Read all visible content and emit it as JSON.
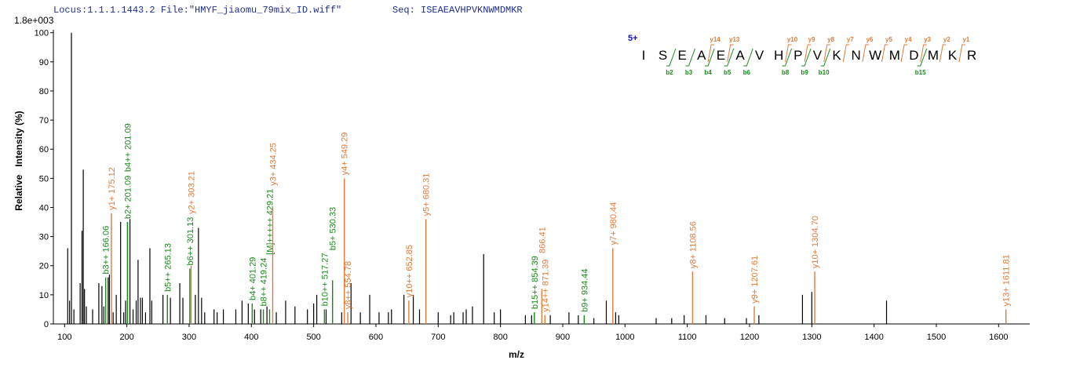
{
  "chart_data": {
    "type": "spectrum",
    "locus": "Locus:1.1.1.1443.2 File:\"HMYF_jiaomu_79mix_ID.wiff\"",
    "seq": "Seq: ISEAEAVHPVKNWMDMKR",
    "scale_label": "1.8e+003",
    "xlabel": "m/z",
    "ylabel": "Relative   Intensity (%)",
    "xlim": [
      82,
      1650
    ],
    "ylim": [
      0,
      101
    ],
    "xticks": [
      100,
      200,
      300,
      400,
      500,
      600,
      700,
      800,
      900,
      1000,
      1100,
      1200,
      1300,
      1400,
      1500,
      1600
    ],
    "yticks": [
      0,
      10,
      20,
      30,
      40,
      50,
      60,
      70,
      80,
      90,
      100
    ],
    "peak_color": "#000000",
    "peaks": {
      "x": [
        105,
        108,
        111,
        115,
        125,
        128,
        130,
        132,
        135,
        145,
        155,
        160,
        163,
        170,
        172,
        178,
        183,
        190,
        195,
        198,
        205,
        210,
        215,
        218,
        222,
        225,
        230,
        237,
        240,
        258,
        270,
        285,
        290,
        310,
        315,
        320,
        325,
        340,
        345,
        355,
        375,
        385,
        395,
        405,
        415,
        425,
        440,
        455,
        470,
        490,
        500,
        505,
        520,
        545,
        560,
        575,
        590,
        605,
        620,
        625,
        645,
        660,
        670,
        700,
        720,
        725,
        740,
        745,
        755,
        773,
        790,
        800,
        840,
        850,
        880,
        910,
        925,
        950,
        970,
        985,
        990,
        1050,
        1075,
        1095,
        1130,
        1160,
        1195,
        1215,
        1285,
        1300,
        1420
      ],
      "values": [
        26,
        8,
        100,
        5,
        14,
        32,
        53,
        12,
        6,
        5,
        14,
        13,
        6,
        16,
        17,
        4,
        10,
        35,
        4,
        8,
        36,
        5,
        8,
        22,
        9,
        9,
        4,
        26,
        8,
        10,
        9,
        14,
        9,
        10,
        33,
        9,
        4,
        5,
        4,
        5,
        5,
        8,
        7,
        5,
        5,
        6,
        4,
        8,
        6,
        5,
        7,
        10,
        5,
        4,
        14,
        4,
        10,
        4,
        4,
        5,
        10,
        10,
        5,
        4,
        3,
        4,
        4,
        5,
        6,
        24,
        4,
        5,
        3,
        3,
        3,
        4,
        3,
        2,
        8,
        4,
        3,
        2,
        2,
        3,
        3,
        2,
        2,
        3,
        10,
        11,
        8
      ]
    },
    "annotations": [
      {
        "x": 166.06,
        "value": 16,
        "label": "b3++ 166.06",
        "color": "#1a8a1a"
      },
      {
        "x": 175.12,
        "value": 38,
        "label": "y1+ 175.12",
        "color": "#e07b39"
      },
      {
        "x": 201.09,
        "value": 35,
        "label": "b2+ 201.09",
        "color": "#1a8a1a"
      },
      {
        "x": 201.09,
        "value": 35,
        "label": "b4++ 201.09",
        "color": "#1a8a1a"
      },
      {
        "x": 265.13,
        "value": 10,
        "label": "b5++ 265.13",
        "color": "#1a8a1a"
      },
      {
        "x": 301.13,
        "value": 19,
        "label": "b6++ 301.13",
        "color": "#1a8a1a"
      },
      {
        "x": 303.21,
        "value": 20,
        "label": "y2+ 303.21",
        "color": "#e07b39"
      },
      {
        "x": 401.29,
        "value": 7,
        "label": "b4+ 401.29",
        "color": "#1a8a1a"
      },
      {
        "x": 419.24,
        "value": 5,
        "label": "b8++ 419.24",
        "color": "#1a8a1a"
      },
      {
        "x": 429.21,
        "value": 5,
        "label": "[M]+++++ 429.21",
        "color": "#1a8a1a"
      },
      {
        "x": 434.25,
        "value": 40,
        "label": "y3+ 434.25",
        "color": "#e07b39"
      },
      {
        "x": 517.27,
        "value": 5,
        "label": "b10++ 517.27",
        "color": "#1a8a1a"
      },
      {
        "x": 530.33,
        "value": 15,
        "label": "b5+ 530.33",
        "color": "#1a8a1a"
      },
      {
        "x": 549.29,
        "value": 50,
        "label": "y4+ 549.29",
        "color": "#e07b39"
      },
      {
        "x": 554.78,
        "value": 4,
        "label": "y8++ 554.78",
        "color": "#e07b39"
      },
      {
        "x": 652.85,
        "value": 8,
        "label": "y10++ 652.85",
        "color": "#e07b39"
      },
      {
        "x": 680.31,
        "value": 36,
        "label": "y5+ 680.31",
        "color": "#e07b39"
      },
      {
        "x": 854.39,
        "value": 4,
        "label": "b15++ 854.39",
        "color": "#1a8a1a"
      },
      {
        "x": 866.41,
        "value": 12,
        "label": "866.41",
        "color": "#e07b39"
      },
      {
        "x": 871.39,
        "value": 3,
        "label": "y14++ 871.39",
        "color": "#e07b39"
      },
      {
        "x": 934.44,
        "value": 3,
        "label": "b9+ 934.44",
        "color": "#1a8a1a"
      },
      {
        "x": 980.44,
        "value": 26,
        "label": "y7+ 980.44",
        "color": "#e07b39"
      },
      {
        "x": 1108.56,
        "value": 18,
        "label": "y8+ 1108.56",
        "color": "#e07b39"
      },
      {
        "x": 1207.61,
        "value": 6,
        "label": "y9+ 1207.61",
        "color": "#e07b39"
      },
      {
        "x": 1304.7,
        "value": 18,
        "label": "y10+ 1304.70",
        "color": "#e07b39"
      },
      {
        "x": 1611.81,
        "value": 5,
        "label": "y13+ 1611.81",
        "color": "#e07b39"
      }
    ],
    "sequence_map": {
      "charge": "5+",
      "residues": [
        "I",
        "S",
        "E",
        "A",
        "E",
        "A",
        "V",
        "H",
        "P",
        "V",
        "K",
        "N",
        "W",
        "M",
        "D",
        "M",
        "K",
        "R"
      ],
      "y_labels": [
        null,
        null,
        null,
        "y14",
        "y13",
        null,
        null,
        "y10",
        "y9",
        "y8",
        "y7",
        "y6",
        "y5",
        "y4",
        "y3",
        "y2",
        "y1"
      ],
      "b_labels": [
        null,
        "b2",
        "b3",
        "b4",
        "b5",
        "b6",
        null,
        "b8",
        "b9",
        "b10",
        null,
        null,
        null,
        null,
        "b15",
        null,
        null
      ],
      "y_color": "#e07b39",
      "b_color": "#1a8a1a",
      "charge_color": "#1010c0"
    }
  }
}
